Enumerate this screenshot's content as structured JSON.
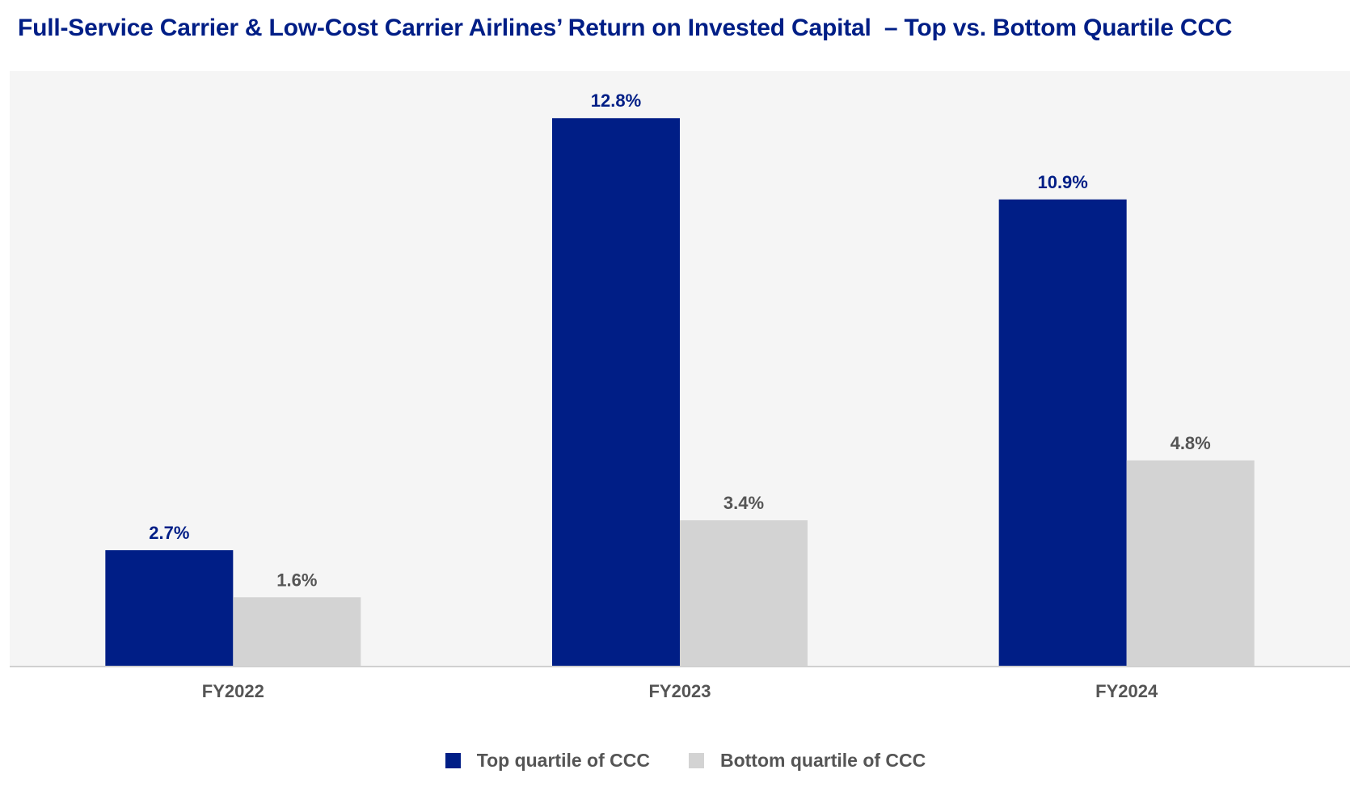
{
  "title": "Full-Service Carrier & Low-Cost Carrier Airlines’ Return on Invested Capital  – Top vs. Bottom Quartile CCC",
  "colors": {
    "top": "#001e86",
    "bottom": "#d3d3d3",
    "plot_bg": "#f5f5f5",
    "axis": "#d0d0d0",
    "label_dark": "#555555"
  },
  "chart_data": {
    "type": "bar",
    "title": "Full-Service Carrier & Low-Cost Carrier Airlines’ Return on Invested Capital  – Top vs. Bottom Quartile CCC",
    "xlabel": "",
    "ylabel": "",
    "categories": [
      "FY2022",
      "FY2023",
      "FY2024"
    ],
    "series": [
      {
        "name": "Top quartile of CCC",
        "values": [
          2.7,
          12.8,
          10.9
        ],
        "labels": [
          "2.7%",
          "12.8%",
          "10.9%"
        ]
      },
      {
        "name": "Bottom quartile of CCC",
        "values": [
          1.6,
          3.4,
          4.8
        ],
        "labels": [
          "1.6%",
          "3.4%",
          "4.8%"
        ]
      }
    ],
    "ylim": [
      0,
      13.9
    ],
    "grid": false,
    "legend": "bottom-center",
    "value_unit": "%"
  },
  "legend": {
    "items": [
      {
        "label": "Top quartile of CCC"
      },
      {
        "label": "Bottom quartile of CCC"
      }
    ]
  }
}
